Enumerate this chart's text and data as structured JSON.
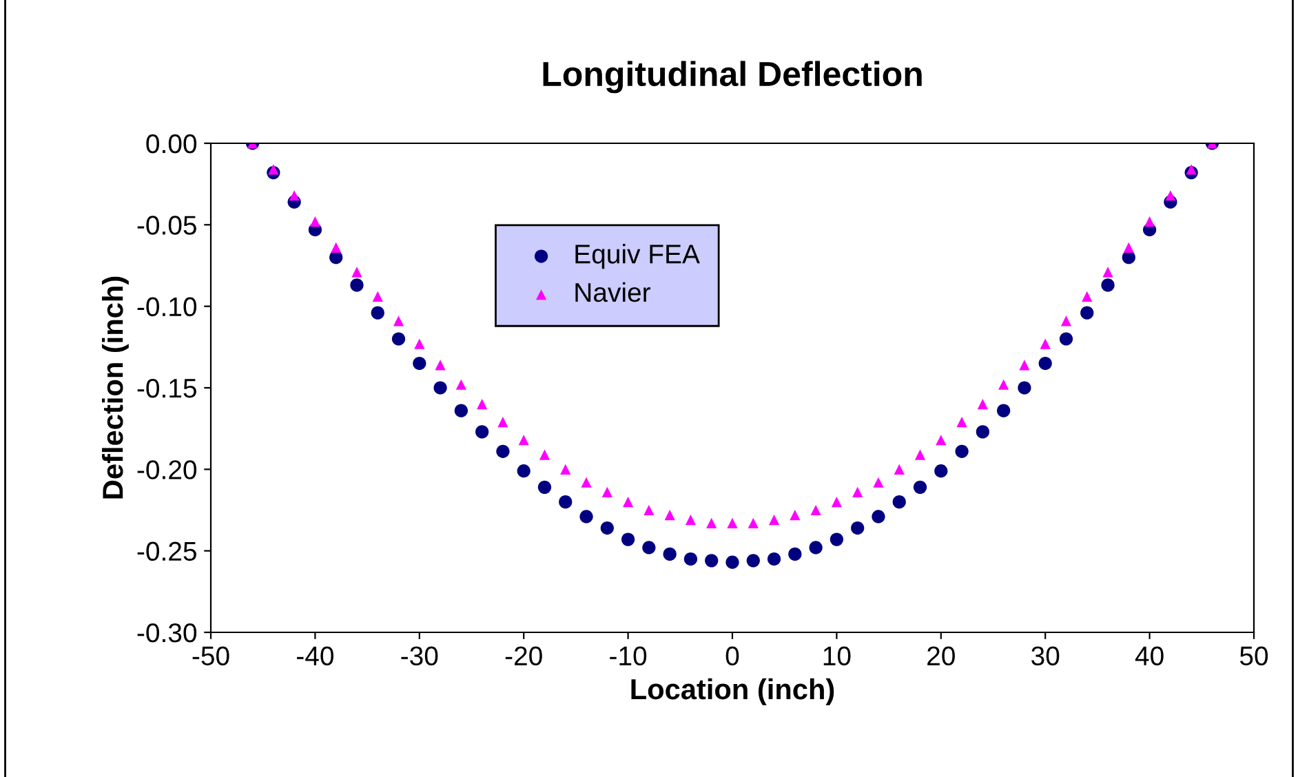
{
  "chart_data": {
    "type": "scatter",
    "title": "Longitudinal Deflection",
    "xlabel": "Location (inch)",
    "ylabel": "Deflection (inch)",
    "x": [
      -46,
      -44,
      -42,
      -40,
      -38,
      -36,
      -34,
      -32,
      -30,
      -28,
      -26,
      -24,
      -22,
      -20,
      -18,
      -16,
      -14,
      -12,
      -10,
      -8,
      -6,
      -4,
      -2,
      0,
      2,
      4,
      6,
      8,
      10,
      12,
      14,
      16,
      18,
      20,
      22,
      24,
      26,
      28,
      30,
      32,
      34,
      36,
      38,
      40,
      42,
      44,
      46
    ],
    "series": [
      {
        "name": "Equiv FEA",
        "color": "#000080",
        "marker": "circle",
        "values": [
          0,
          -0.018,
          -0.036,
          -0.053,
          -0.07,
          -0.087,
          -0.104,
          -0.12,
          -0.135,
          -0.15,
          -0.164,
          -0.177,
          -0.189,
          -0.201,
          -0.211,
          -0.22,
          -0.229,
          -0.236,
          -0.243,
          -0.248,
          -0.252,
          -0.255,
          -0.256,
          -0.257,
          -0.256,
          -0.255,
          -0.252,
          -0.248,
          -0.243,
          -0.236,
          -0.229,
          -0.22,
          -0.211,
          -0.201,
          -0.189,
          -0.177,
          -0.164,
          -0.15,
          -0.135,
          -0.12,
          -0.104,
          -0.087,
          -0.07,
          -0.053,
          -0.036,
          -0.018,
          0
        ]
      },
      {
        "name": "Navier",
        "color": "#ff00ff",
        "marker": "triangle",
        "values": [
          0,
          -0.016,
          -0.032,
          -0.048,
          -0.064,
          -0.079,
          -0.094,
          -0.109,
          -0.123,
          -0.136,
          -0.148,
          -0.16,
          -0.171,
          -0.182,
          -0.191,
          -0.2,
          -0.208,
          -0.214,
          -0.22,
          -0.225,
          -0.228,
          -0.231,
          -0.233,
          -0.233,
          -0.233,
          -0.231,
          -0.228,
          -0.225,
          -0.22,
          -0.214,
          -0.208,
          -0.2,
          -0.191,
          -0.182,
          -0.171,
          -0.16,
          -0.148,
          -0.136,
          -0.123,
          -0.109,
          -0.094,
          -0.079,
          -0.064,
          -0.048,
          -0.032,
          -0.016,
          0
        ]
      }
    ],
    "xlim": [
      -50,
      50
    ],
    "xticks": [
      -50,
      -40,
      -30,
      -20,
      -10,
      0,
      10,
      20,
      30,
      40,
      50
    ],
    "ylim": [
      -0.3,
      0
    ],
    "yticks": [
      {
        "value": -0.3,
        "label": "-0.30"
      },
      {
        "value": -0.25,
        "label": "-0.25"
      },
      {
        "value": -0.2,
        "label": "-0.20"
      },
      {
        "value": -0.15,
        "label": "-0.15"
      },
      {
        "value": -0.1,
        "label": "-0.10"
      },
      {
        "value": -0.05,
        "label": "-0.05"
      },
      {
        "value": 0,
        "label": "0.00"
      }
    ],
    "grid": false,
    "legend": "top"
  }
}
